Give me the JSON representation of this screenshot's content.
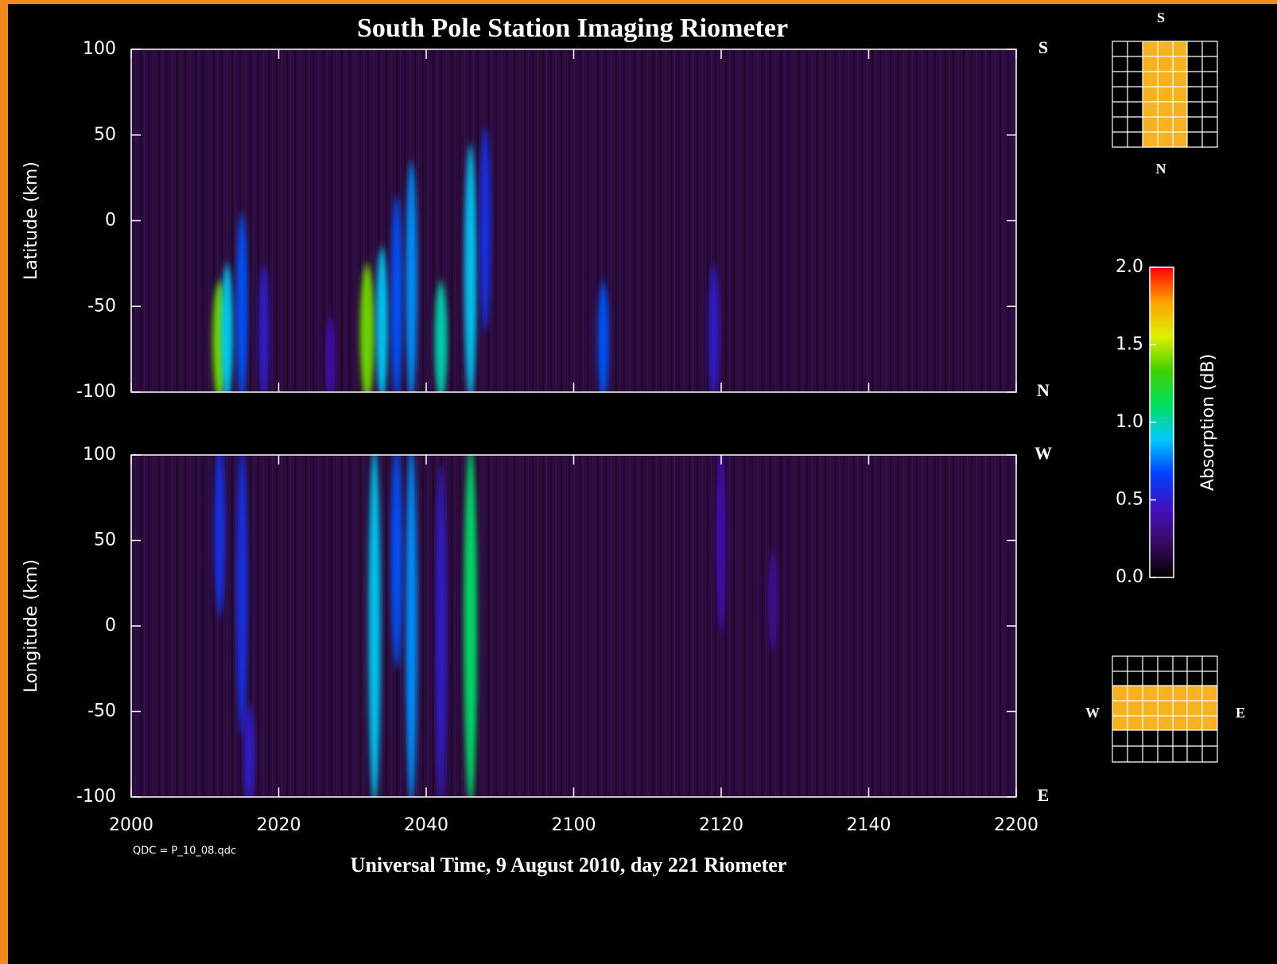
{
  "title": "South Pole Station Imaging Riometer",
  "x_label": "Universal Time, 9 August 2010, day 221 Riometer",
  "note": "QDC = P_10_08.qdc",
  "chart_data": [
    {
      "type": "heatmap",
      "y_label": "Latitude (km)",
      "background": "#2c0c3e",
      "xlim": [
        "2000",
        "2200"
      ],
      "xticks": [
        "2000",
        "2020",
        "2040",
        "2100",
        "2120",
        "2140",
        "2200"
      ],
      "ylim": [
        -100,
        100
      ],
      "yticks": [
        100,
        50,
        0,
        -50,
        -100
      ],
      "edge_labels": {
        "top": "S",
        "bottom": "N"
      },
      "x": [
        "2012",
        "2013",
        "2015",
        "2018",
        "2027",
        "2032",
        "2034",
        "2036",
        "2038",
        "2042",
        "2046",
        "2048",
        "2104",
        "2119"
      ],
      "y_low": [
        -100,
        -100,
        -100,
        -100,
        -100,
        -100,
        -100,
        -100,
        -100,
        -100,
        -100,
        -60,
        -100,
        -100
      ],
      "y_high": [
        -40,
        -30,
        0,
        -30,
        -60,
        -30,
        -20,
        10,
        30,
        -40,
        40,
        50,
        -40,
        -30
      ],
      "values": [
        1.4,
        0.9,
        0.7,
        0.5,
        0.4,
        1.4,
        0.9,
        0.7,
        0.8,
        1.0,
        0.9,
        0.6,
        0.7,
        0.5
      ]
    },
    {
      "type": "heatmap",
      "y_label": "Longitude (km)",
      "background": "#2c0c3e",
      "xlim": [
        "2000",
        "2200"
      ],
      "xticks": [
        "2000",
        "2020",
        "2040",
        "2100",
        "2120",
        "2140",
        "2200"
      ],
      "ylim": [
        -100,
        100
      ],
      "yticks": [
        100,
        50,
        0,
        -50,
        -100
      ],
      "edge_labels": {
        "top": "W",
        "bottom": "E"
      },
      "x": [
        "2012",
        "2015",
        "2016",
        "2033",
        "2036",
        "2038",
        "2042",
        "2046",
        "2120",
        "2127"
      ],
      "y_low": [
        10,
        -60,
        -100,
        -100,
        -20,
        -100,
        -100,
        -100,
        0,
        -10
      ],
      "y_high": [
        100,
        100,
        -50,
        100,
        100,
        100,
        90,
        100,
        100,
        40
      ],
      "values": [
        0.6,
        0.6,
        0.5,
        0.9,
        0.7,
        0.8,
        0.5,
        1.1,
        0.4,
        0.35
      ]
    }
  ],
  "colorbar": {
    "label": "Absorption (dB)",
    "lim": [
      0,
      2
    ],
    "ticks": [
      {
        "value": 0,
        "label": "0.0"
      },
      {
        "value": 0.5,
        "label": "0.5"
      },
      {
        "value": 1,
        "label": "1.0"
      },
      {
        "value": 1.5,
        "label": "1.5"
      },
      {
        "value": 2,
        "label": "2.0"
      }
    ],
    "colors": [
      "#000000",
      "#3a0a60",
      "#4010c0",
      "#0040ff",
      "#00c8ff",
      "#00e060",
      "#40d000",
      "#e0f000",
      "#ffa000",
      "#ff0000"
    ]
  },
  "maps": {
    "latitude": {
      "top": "S",
      "bottom": "N"
    },
    "longitude": {
      "left": "W",
      "right": "E"
    }
  }
}
